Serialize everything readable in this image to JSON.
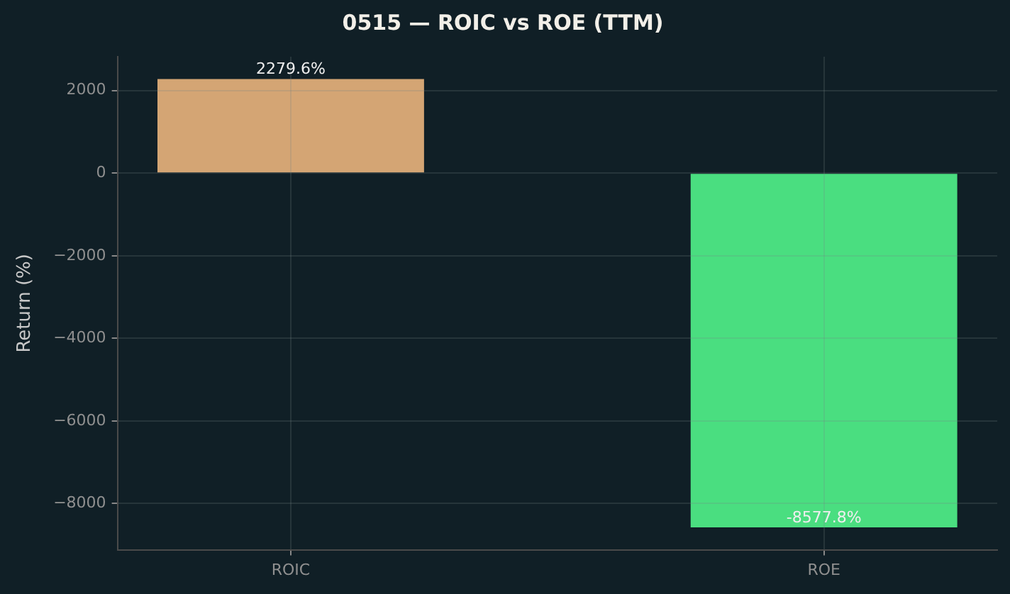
{
  "chart_data": {
    "type": "bar",
    "title": "0515 — ROIC vs ROE (TTM)",
    "ylabel": "Return (%)",
    "categories": [
      "ROIC",
      "ROE"
    ],
    "values": [
      2279.6,
      -8577.8
    ],
    "colors": [
      "#d4a574",
      "#4ade80"
    ],
    "value_labels": [
      "2279.6%",
      "-8577.8%"
    ],
    "ylim": [
      -9120,
      2820
    ],
    "yticks": [
      -8000,
      -6000,
      -4000,
      -2000,
      0,
      2000
    ],
    "grid": true,
    "legend": false
  }
}
